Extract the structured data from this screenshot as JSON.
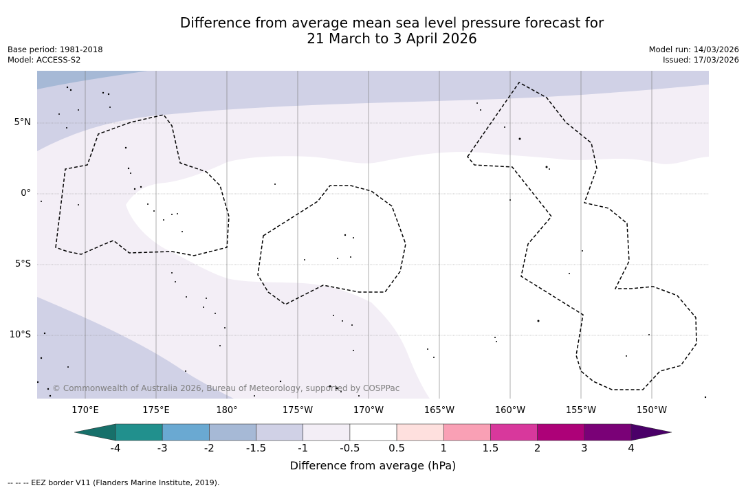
{
  "title": {
    "line1": "Difference from average mean sea level pressure forecast for",
    "line2": "21 March to 3 April 2026"
  },
  "meta_left": {
    "base_period": "Base period: 1981-2018",
    "model": "Model: ACCESS-S2"
  },
  "meta_right": {
    "model_run": "Model run: 14/03/2026",
    "issued": "Issued: 17/03/2026"
  },
  "map": {
    "lat_labels": [
      "5°N",
      "0°",
      "5°S",
      "10°S"
    ],
    "lon_labels": [
      "170°E",
      "175°E",
      "180°",
      "175°W",
      "170°W",
      "165°W",
      "160°W",
      "155°W",
      "150°W"
    ],
    "copyright": "© Commonwealth of Australia 2026, Bureau of Meteorology, supported by COSPPac"
  },
  "colorbar": {
    "title": "Difference from average (hPa)",
    "ticks": [
      "-4",
      "-3",
      "-2",
      "-1.5",
      "-1",
      "-0.5",
      "0.5",
      "1",
      "1.5",
      "2",
      "3",
      "4"
    ],
    "colors": [
      "#17706a",
      "#21908d",
      "#6aa9d2",
      "#a6b9d6",
      "#d0d1e6",
      "#f3eef6",
      "#ffffff",
      "#fee0de",
      "#f9a0b5",
      "#d8389c",
      "#ad0178",
      "#7a0177",
      "#4a0068"
    ]
  },
  "footer": "--  --  -- EEZ border V11 (Flanders Marine Institute, 2019)."
}
